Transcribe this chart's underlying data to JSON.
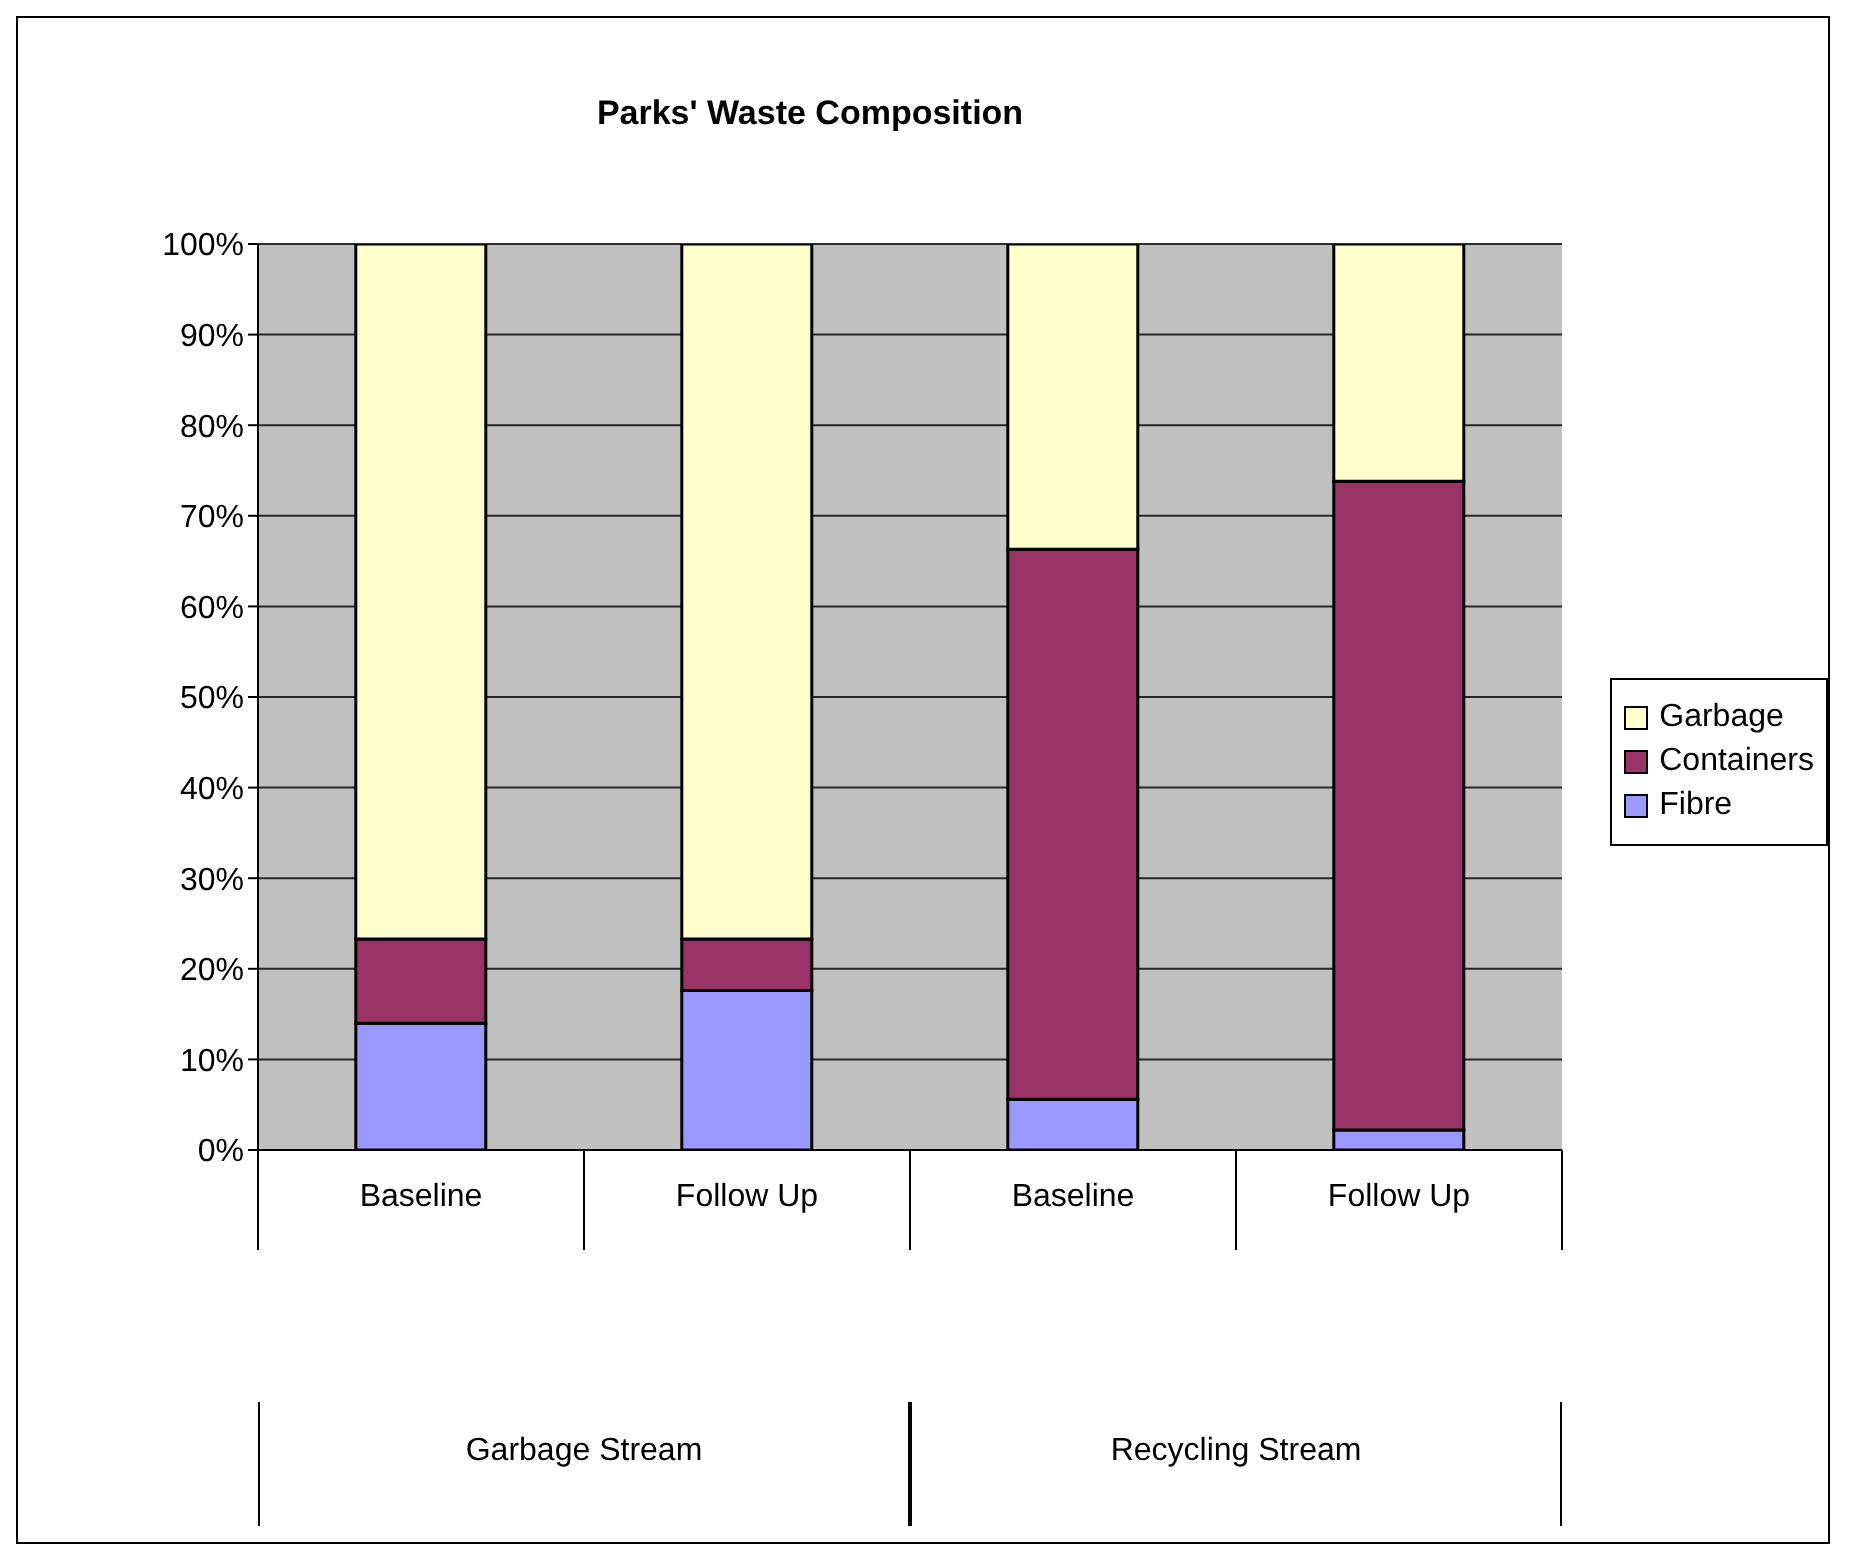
{
  "chart_data": {
    "type": "bar",
    "title": "Parks' Waste Composition",
    "stacked": true,
    "categories": [
      "Baseline",
      "Follow Up",
      "Baseline",
      "Follow Up"
    ],
    "series": [
      {
        "name": "Fibre",
        "color": "#9999ff",
        "values": [
          14,
          17.6,
          5.6,
          2.2
        ]
      },
      {
        "name": "Containers",
        "color": "#993366",
        "values": [
          9.3,
          5.7,
          60.7,
          71.6
        ]
      },
      {
        "name": "Garbage",
        "color": "#ffffcc",
        "values": [
          76.7,
          76.7,
          33.7,
          26.2
        ]
      }
    ],
    "ylim": [
      0,
      100
    ],
    "yticks": [
      {
        "value": 0,
        "label": "0%"
      },
      {
        "value": 10,
        "label": "10%"
      },
      {
        "value": 20,
        "label": "20%"
      },
      {
        "value": 30,
        "label": "30%"
      },
      {
        "value": 40,
        "label": "40%"
      },
      {
        "value": 50,
        "label": "50%"
      },
      {
        "value": 60,
        "label": "60%"
      },
      {
        "value": 70,
        "label": "70%"
      },
      {
        "value": 80,
        "label": "80%"
      },
      {
        "value": 90,
        "label": "90%"
      },
      {
        "value": 100,
        "label": "100%"
      }
    ],
    "grid": "y",
    "legend": "right",
    "annotations": [
      "Garbage Stream",
      "Recycling Stream"
    ]
  }
}
